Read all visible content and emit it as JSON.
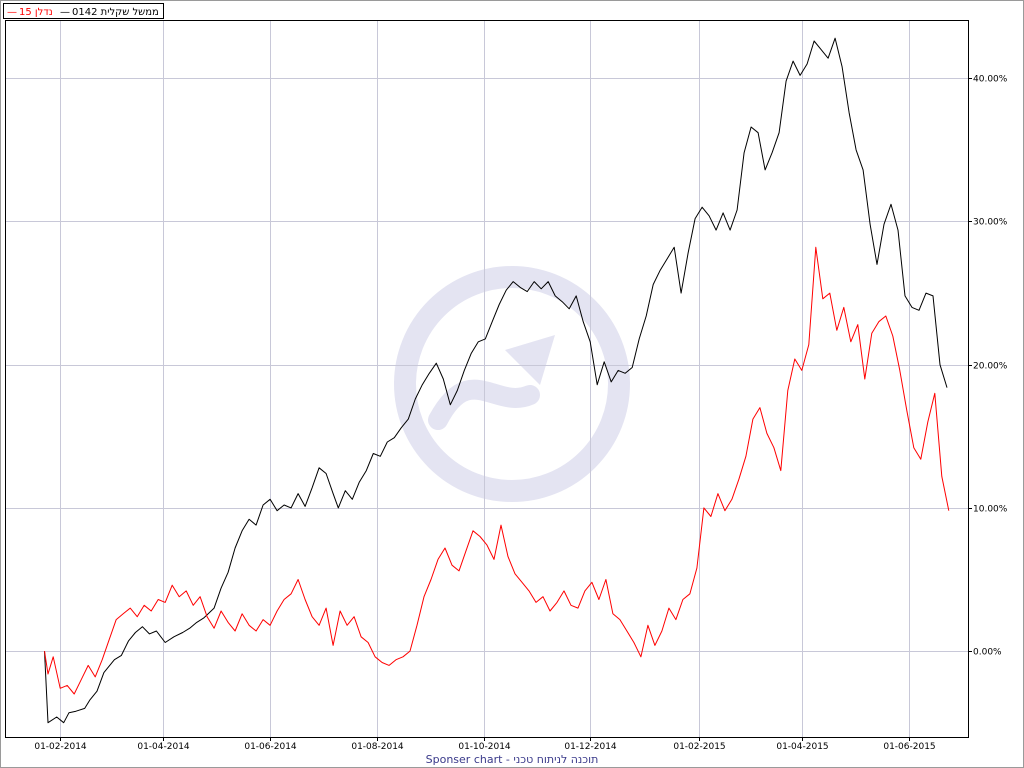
{
  "legend": {
    "item_1_label": "ממשל שקלית 0142",
    "item_2_label": "נדלן 15"
  },
  "footer": {
    "text": "תוכנה לניתוח טכני - Sponser chart"
  },
  "colors": {
    "series_1": "#000000",
    "series_2": "#ff0000",
    "grid": "#c8c8d8",
    "watermark": "#e4e4f2"
  },
  "chart_data": {
    "type": "line",
    "title": "",
    "xlabel": "",
    "ylabel": "",
    "x_range": [
      "2014-01-01",
      "2015-07-05"
    ],
    "ylim": [
      -6,
      44
    ],
    "y_unit": "%",
    "y_ticks": [
      "0.00%",
      "10.00%",
      "20.00%",
      "30.00%",
      "40.00%"
    ],
    "y_tick_values": [
      0,
      10,
      20,
      30,
      40
    ],
    "x_ticks": [
      "01-02-2014",
      "01-04-2014",
      "01-06-2014",
      "01-08-2014",
      "01-10-2014",
      "01-12-2014",
      "01-02-2015",
      "01-04-2015",
      "01-06-2015"
    ],
    "x_tick_dates": [
      "2014-02-01",
      "2014-04-01",
      "2014-06-01",
      "2014-08-01",
      "2014-10-01",
      "2014-12-01",
      "2015-02-01",
      "2015-04-01",
      "2015-06-01"
    ],
    "grid": true,
    "legend_position": "top-left",
    "watermark": true,
    "series": [
      {
        "name": "ממשל שקלית 0142",
        "color": "#000000",
        "points": [
          [
            "2014-01-23",
            0
          ],
          [
            "2014-01-25",
            -5.0
          ],
          [
            "2014-01-30",
            -4.6
          ],
          [
            "2014-02-03",
            -5.0
          ],
          [
            "2014-02-06",
            -4.3
          ],
          [
            "2014-02-10",
            -4.2
          ],
          [
            "2014-02-15",
            -4.0
          ],
          [
            "2014-02-18",
            -3.4
          ],
          [
            "2014-02-22",
            -2.8
          ],
          [
            "2014-02-26",
            -1.5
          ],
          [
            "2014-03-04",
            -0.6
          ],
          [
            "2014-03-08",
            -0.3
          ],
          [
            "2014-03-12",
            0.7
          ],
          [
            "2014-03-16",
            1.3
          ],
          [
            "2014-03-20",
            1.7
          ],
          [
            "2014-03-24",
            1.2
          ],
          [
            "2014-03-28",
            1.4
          ],
          [
            "2014-04-02",
            0.6
          ],
          [
            "2014-04-07",
            1.0
          ],
          [
            "2014-04-12",
            1.3
          ],
          [
            "2014-04-16",
            1.6
          ],
          [
            "2014-04-20",
            2.0
          ],
          [
            "2014-04-24",
            2.3
          ],
          [
            "2014-04-30",
            3.0
          ],
          [
            "2014-05-04",
            4.4
          ],
          [
            "2014-05-08",
            5.5
          ],
          [
            "2014-05-12",
            7.2
          ],
          [
            "2014-05-16",
            8.4
          ],
          [
            "2014-05-20",
            9.2
          ],
          [
            "2014-05-24",
            8.8
          ],
          [
            "2014-05-28",
            10.2
          ],
          [
            "2014-06-01",
            10.6
          ],
          [
            "2014-06-05",
            9.8
          ],
          [
            "2014-06-09",
            10.2
          ],
          [
            "2014-06-13",
            10.0
          ],
          [
            "2014-06-17",
            11.0
          ],
          [
            "2014-06-21",
            10.1
          ],
          [
            "2014-06-25",
            11.4
          ],
          [
            "2014-06-29",
            12.8
          ],
          [
            "2014-07-03",
            12.4
          ],
          [
            "2014-07-07",
            11.0
          ],
          [
            "2014-07-10",
            10.0
          ],
          [
            "2014-07-14",
            11.2
          ],
          [
            "2014-07-18",
            10.6
          ],
          [
            "2014-07-22",
            11.8
          ],
          [
            "2014-07-26",
            12.6
          ],
          [
            "2014-07-30",
            13.8
          ],
          [
            "2014-08-03",
            13.6
          ],
          [
            "2014-08-07",
            14.6
          ],
          [
            "2014-08-11",
            14.9
          ],
          [
            "2014-08-15",
            15.6
          ],
          [
            "2014-08-19",
            16.2
          ],
          [
            "2014-08-23",
            17.6
          ],
          [
            "2014-08-27",
            18.6
          ],
          [
            "2014-08-31",
            19.4
          ],
          [
            "2014-09-04",
            20.1
          ],
          [
            "2014-09-08",
            19.0
          ],
          [
            "2014-09-12",
            17.2
          ],
          [
            "2014-09-16",
            18.2
          ],
          [
            "2014-09-20",
            19.6
          ],
          [
            "2014-09-24",
            20.8
          ],
          [
            "2014-09-28",
            21.6
          ],
          [
            "2014-10-02",
            21.8
          ],
          [
            "2014-10-06",
            23.0
          ],
          [
            "2014-10-10",
            24.2
          ],
          [
            "2014-10-14",
            25.2
          ],
          [
            "2014-10-18",
            25.8
          ],
          [
            "2014-10-22",
            25.4
          ],
          [
            "2014-10-26",
            25.1
          ],
          [
            "2014-10-30",
            25.8
          ],
          [
            "2014-11-03",
            25.3
          ],
          [
            "2014-11-07",
            25.8
          ],
          [
            "2014-11-11",
            24.8
          ],
          [
            "2014-11-15",
            24.4
          ],
          [
            "2014-11-19",
            23.9
          ],
          [
            "2014-11-23",
            24.8
          ],
          [
            "2014-11-27",
            23.0
          ],
          [
            "2014-12-01",
            21.6
          ],
          [
            "2014-12-05",
            18.6
          ],
          [
            "2014-12-09",
            20.2
          ],
          [
            "2014-12-13",
            18.8
          ],
          [
            "2014-12-17",
            19.6
          ],
          [
            "2014-12-21",
            19.4
          ],
          [
            "2014-12-25",
            19.8
          ],
          [
            "2014-12-29",
            21.8
          ],
          [
            "2015-01-02",
            23.4
          ],
          [
            "2015-01-06",
            25.6
          ],
          [
            "2015-01-10",
            26.6
          ],
          [
            "2015-01-14",
            27.4
          ],
          [
            "2015-01-18",
            28.2
          ],
          [
            "2015-01-22",
            25.0
          ],
          [
            "2015-01-26",
            27.8
          ],
          [
            "2015-01-30",
            30.2
          ],
          [
            "2015-02-03",
            31.0
          ],
          [
            "2015-02-07",
            30.4
          ],
          [
            "2015-02-11",
            29.4
          ],
          [
            "2015-02-15",
            30.6
          ],
          [
            "2015-02-19",
            29.4
          ],
          [
            "2015-02-23",
            30.8
          ],
          [
            "2015-02-27",
            34.8
          ],
          [
            "2015-03-03",
            36.6
          ],
          [
            "2015-03-07",
            36.2
          ],
          [
            "2015-03-11",
            33.6
          ],
          [
            "2015-03-15",
            34.8
          ],
          [
            "2015-03-19",
            36.2
          ],
          [
            "2015-03-23",
            39.8
          ],
          [
            "2015-03-27",
            41.2
          ],
          [
            "2015-03-31",
            40.2
          ],
          [
            "2015-04-04",
            41.0
          ],
          [
            "2015-04-08",
            42.6
          ],
          [
            "2015-04-12",
            42.0
          ],
          [
            "2015-04-16",
            41.4
          ],
          [
            "2015-04-20",
            42.8
          ],
          [
            "2015-04-24",
            40.8
          ],
          [
            "2015-04-28",
            37.6
          ],
          [
            "2015-05-02",
            35.0
          ],
          [
            "2015-05-06",
            33.6
          ],
          [
            "2015-05-10",
            29.8
          ],
          [
            "2015-05-14",
            27.0
          ],
          [
            "2015-05-18",
            29.8
          ],
          [
            "2015-05-22",
            31.2
          ],
          [
            "2015-05-26",
            29.4
          ],
          [
            "2015-05-30",
            24.8
          ],
          [
            "2015-06-03",
            24.0
          ],
          [
            "2015-06-07",
            23.8
          ],
          [
            "2015-06-11",
            25.0
          ],
          [
            "2015-06-15",
            24.8
          ],
          [
            "2015-06-19",
            20.0
          ],
          [
            "2015-06-23",
            18.4
          ]
        ]
      },
      {
        "name": "נדלן 15",
        "color": "#ff0000",
        "points": [
          [
            "2014-01-23",
            0
          ],
          [
            "2014-01-25",
            -1.6
          ],
          [
            "2014-01-28",
            -0.4
          ],
          [
            "2014-02-01",
            -2.6
          ],
          [
            "2014-02-05",
            -2.4
          ],
          [
            "2014-02-09",
            -3.0
          ],
          [
            "2014-02-13",
            -2.0
          ],
          [
            "2014-02-17",
            -1.0
          ],
          [
            "2014-02-21",
            -1.8
          ],
          [
            "2014-02-25",
            -0.6
          ],
          [
            "2014-03-01",
            0.8
          ],
          [
            "2014-03-05",
            2.2
          ],
          [
            "2014-03-09",
            2.6
          ],
          [
            "2014-03-13",
            3.0
          ],
          [
            "2014-03-17",
            2.4
          ],
          [
            "2014-03-21",
            3.2
          ],
          [
            "2014-03-25",
            2.8
          ],
          [
            "2014-03-29",
            3.6
          ],
          [
            "2014-04-02",
            3.4
          ],
          [
            "2014-04-06",
            4.6
          ],
          [
            "2014-04-10",
            3.8
          ],
          [
            "2014-04-14",
            4.2
          ],
          [
            "2014-04-18",
            3.2
          ],
          [
            "2014-04-22",
            3.8
          ],
          [
            "2014-04-26",
            2.4
          ],
          [
            "2014-04-30",
            1.6
          ],
          [
            "2014-05-04",
            2.8
          ],
          [
            "2014-05-08",
            2.0
          ],
          [
            "2014-05-12",
            1.4
          ],
          [
            "2014-05-16",
            2.6
          ],
          [
            "2014-05-20",
            1.8
          ],
          [
            "2014-05-24",
            1.4
          ],
          [
            "2014-05-28",
            2.2
          ],
          [
            "2014-06-01",
            1.8
          ],
          [
            "2014-06-05",
            2.8
          ],
          [
            "2014-06-09",
            3.6
          ],
          [
            "2014-06-13",
            4.0
          ],
          [
            "2014-06-17",
            5.0
          ],
          [
            "2014-06-21",
            3.6
          ],
          [
            "2014-06-25",
            2.4
          ],
          [
            "2014-06-29",
            1.8
          ],
          [
            "2014-07-03",
            3.0
          ],
          [
            "2014-07-07",
            0.4
          ],
          [
            "2014-07-11",
            2.8
          ],
          [
            "2014-07-15",
            1.8
          ],
          [
            "2014-07-19",
            2.4
          ],
          [
            "2014-07-23",
            1.0
          ],
          [
            "2014-07-27",
            0.6
          ],
          [
            "2014-07-31",
            -0.4
          ],
          [
            "2014-08-04",
            -0.8
          ],
          [
            "2014-08-08",
            -1.0
          ],
          [
            "2014-08-12",
            -0.6
          ],
          [
            "2014-08-16",
            -0.4
          ],
          [
            "2014-08-20",
            0.0
          ],
          [
            "2014-08-24",
            1.8
          ],
          [
            "2014-08-28",
            3.8
          ],
          [
            "2014-09-01",
            5.0
          ],
          [
            "2014-09-05",
            6.4
          ],
          [
            "2014-09-09",
            7.2
          ],
          [
            "2014-09-13",
            6.0
          ],
          [
            "2014-09-17",
            5.6
          ],
          [
            "2014-09-21",
            7.0
          ],
          [
            "2014-09-25",
            8.4
          ],
          [
            "2014-09-29",
            8.0
          ],
          [
            "2014-10-03",
            7.4
          ],
          [
            "2014-10-07",
            6.4
          ],
          [
            "2014-10-11",
            8.8
          ],
          [
            "2014-10-15",
            6.6
          ],
          [
            "2014-10-19",
            5.4
          ],
          [
            "2014-10-23",
            4.8
          ],
          [
            "2014-10-27",
            4.2
          ],
          [
            "2014-10-31",
            3.4
          ],
          [
            "2014-11-04",
            3.8
          ],
          [
            "2014-11-08",
            2.8
          ],
          [
            "2014-11-12",
            3.4
          ],
          [
            "2014-11-16",
            4.2
          ],
          [
            "2014-11-20",
            3.2
          ],
          [
            "2014-11-24",
            3.0
          ],
          [
            "2014-11-28",
            4.2
          ],
          [
            "2014-12-02",
            4.8
          ],
          [
            "2014-12-06",
            3.6
          ],
          [
            "2014-12-10",
            5.0
          ],
          [
            "2014-12-14",
            2.6
          ],
          [
            "2014-12-18",
            2.2
          ],
          [
            "2014-12-22",
            1.4
          ],
          [
            "2014-12-26",
            0.6
          ],
          [
            "2014-12-30",
            -0.4
          ],
          [
            "2015-01-03",
            1.8
          ],
          [
            "2015-01-07",
            0.4
          ],
          [
            "2015-01-11",
            1.4
          ],
          [
            "2015-01-15",
            3.0
          ],
          [
            "2015-01-19",
            2.2
          ],
          [
            "2015-01-23",
            3.6
          ],
          [
            "2015-01-27",
            4.0
          ],
          [
            "2015-01-31",
            5.8
          ],
          [
            "2015-02-04",
            10.0
          ],
          [
            "2015-02-08",
            9.4
          ],
          [
            "2015-02-12",
            11.0
          ],
          [
            "2015-02-16",
            9.8
          ],
          [
            "2015-02-20",
            10.6
          ],
          [
            "2015-02-24",
            12.0
          ],
          [
            "2015-02-28",
            13.6
          ],
          [
            "2015-03-04",
            16.2
          ],
          [
            "2015-03-08",
            17.0
          ],
          [
            "2015-03-12",
            15.2
          ],
          [
            "2015-03-16",
            14.2
          ],
          [
            "2015-03-20",
            12.6
          ],
          [
            "2015-03-24",
            18.2
          ],
          [
            "2015-03-28",
            20.4
          ],
          [
            "2015-04-01",
            19.6
          ],
          [
            "2015-04-05",
            21.4
          ],
          [
            "2015-04-09",
            28.2
          ],
          [
            "2015-04-13",
            24.6
          ],
          [
            "2015-04-17",
            25.0
          ],
          [
            "2015-04-21",
            22.4
          ],
          [
            "2015-04-25",
            24.0
          ],
          [
            "2015-04-29",
            21.6
          ],
          [
            "2015-05-03",
            22.8
          ],
          [
            "2015-05-07",
            19.0
          ],
          [
            "2015-05-11",
            22.2
          ],
          [
            "2015-05-15",
            23.0
          ],
          [
            "2015-05-19",
            23.4
          ],
          [
            "2015-05-23",
            22.0
          ],
          [
            "2015-05-27",
            19.6
          ],
          [
            "2015-05-31",
            16.8
          ],
          [
            "2015-06-04",
            14.2
          ],
          [
            "2015-06-08",
            13.4
          ],
          [
            "2015-06-12",
            16.0
          ],
          [
            "2015-06-16",
            18.0
          ],
          [
            "2015-06-20",
            12.2
          ],
          [
            "2015-06-24",
            9.8
          ]
        ]
      }
    ]
  }
}
